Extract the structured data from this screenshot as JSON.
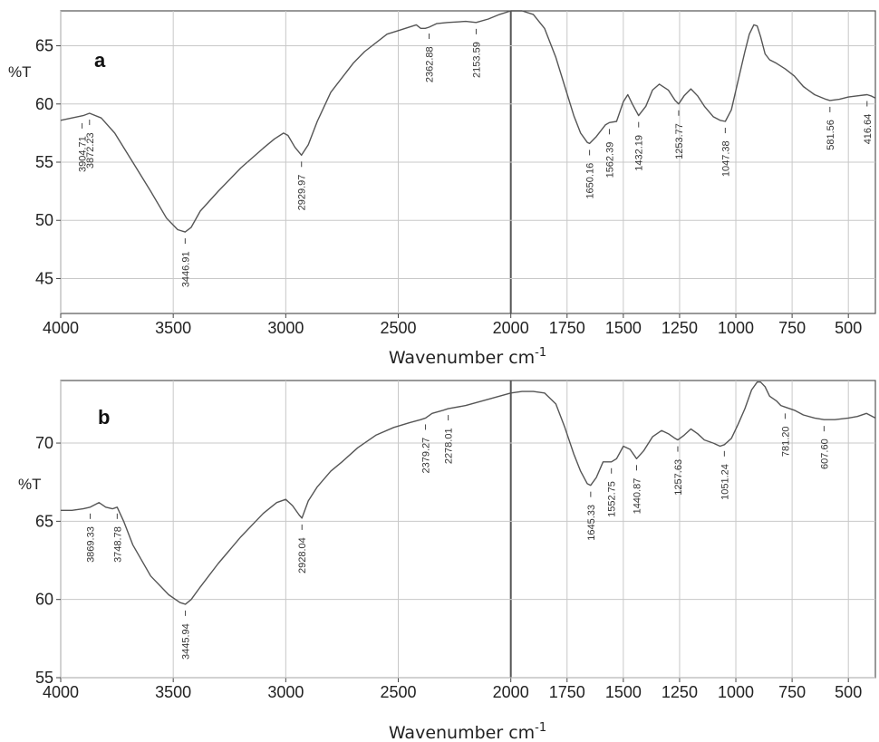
{
  "chart_data": [
    {
      "type": "line",
      "panel_label": "a",
      "ylabel": "%T",
      "xlabel": "Wavenumber cm",
      "xlabel_sup": "-1",
      "xlim": [
        4000,
        380
      ],
      "ylim": [
        42,
        68
      ],
      "x_ticks": [
        4000,
        3500,
        3000,
        2500,
        2000,
        1750,
        1500,
        1250,
        1000,
        750,
        500
      ],
      "y_ticks": [
        45,
        50,
        55,
        60,
        65
      ],
      "grid": true,
      "series": [
        {
          "x": [
            4000,
            3950,
            3900,
            3872,
            3820,
            3760,
            3680,
            3600,
            3530,
            3480,
            3447,
            3420,
            3380,
            3300,
            3200,
            3100,
            3050,
            3010,
            2990,
            2960,
            2930,
            2900,
            2860,
            2800,
            2760,
            2700,
            2650,
            2550,
            2500,
            2420,
            2400,
            2380,
            2363,
            2330,
            2280,
            2200,
            2154,
            2100,
            2050,
            2000,
            1950,
            1900,
            1850,
            1800,
            1760,
            1720,
            1690,
            1660,
            1650,
            1620,
            1580,
            1562,
            1530,
            1500,
            1480,
            1460,
            1432,
            1400,
            1370,
            1340,
            1300,
            1270,
            1254,
            1230,
            1200,
            1170,
            1140,
            1100,
            1070,
            1047,
            1020,
            990,
            960,
            940,
            920,
            905,
            890,
            870,
            850,
            820,
            780,
            740,
            700,
            650,
            600,
            582,
            540,
            500,
            460,
            417,
            400,
            380
          ],
          "values": [
            58.6,
            58.8,
            59.0,
            59.2,
            58.8,
            57.5,
            55.0,
            52.5,
            50.2,
            49.2,
            49.0,
            49.4,
            50.8,
            52.5,
            54.5,
            56.2,
            57.0,
            57.5,
            57.3,
            56.3,
            55.6,
            56.5,
            58.5,
            61.0,
            62.0,
            63.5,
            64.5,
            66.0,
            66.3,
            66.8,
            66.5,
            66.5,
            66.6,
            66.9,
            67.0,
            67.1,
            67.0,
            67.3,
            67.7,
            68.0,
            68.0,
            67.7,
            66.5,
            64.0,
            61.5,
            59.0,
            57.5,
            56.7,
            56.6,
            57.2,
            58.2,
            58.4,
            58.5,
            60.2,
            60.8,
            60.0,
            59.0,
            59.8,
            61.2,
            61.7,
            61.2,
            60.3,
            60.0,
            60.7,
            61.3,
            60.7,
            59.8,
            58.9,
            58.6,
            58.5,
            59.5,
            62.0,
            64.5,
            66.0,
            66.8,
            66.7,
            65.8,
            64.3,
            63.8,
            63.5,
            63.0,
            62.4,
            61.5,
            60.8,
            60.4,
            60.3,
            60.4,
            60.6,
            60.7,
            60.8,
            60.7,
            60.5
          ]
        }
      ],
      "peaks": [
        {
          "label": "3904.71",
          "x": 3905,
          "y": 58.9
        },
        {
          "label": "3872.23",
          "x": 3872,
          "y": 59.2
        },
        {
          "label": "3446.91",
          "x": 3447,
          "y": 49.0
        },
        {
          "label": "2929.97",
          "x": 2930,
          "y": 55.6
        },
        {
          "label": "2362.88",
          "x": 2363,
          "y": 66.6
        },
        {
          "label": "2153.59",
          "x": 2154,
          "y": 67.0
        },
        {
          "label": "1650.16",
          "x": 1650,
          "y": 56.6
        },
        {
          "label": "1562.39",
          "x": 1562,
          "y": 58.4
        },
        {
          "label": "1432.19",
          "x": 1432,
          "y": 59.0
        },
        {
          "label": "1253.77",
          "x": 1254,
          "y": 60.0
        },
        {
          "label": "1047.38",
          "x": 1047,
          "y": 58.5
        },
        {
          "label": "581.56",
          "x": 582,
          "y": 60.3
        },
        {
          "label": "416.64",
          "x": 417,
          "y": 60.8
        }
      ]
    },
    {
      "type": "line",
      "panel_label": "b",
      "ylabel": "%T",
      "xlabel": "Wavenumber cm",
      "xlabel_sup": "-1",
      "xlim": [
        4000,
        380
      ],
      "ylim": [
        55,
        74
      ],
      "x_ticks": [
        4000,
        3500,
        3000,
        2500,
        2000,
        1750,
        1500,
        1250,
        1000,
        750,
        500
      ],
      "y_ticks": [
        55,
        60,
        65,
        70
      ],
      "grid": true,
      "series": [
        {
          "x": [
            4000,
            3950,
            3900,
            3869,
            3830,
            3800,
            3770,
            3749,
            3720,
            3680,
            3600,
            3520,
            3470,
            3446,
            3420,
            3380,
            3300,
            3200,
            3100,
            3040,
            3000,
            2970,
            2940,
            2928,
            2900,
            2860,
            2800,
            2750,
            2680,
            2600,
            2520,
            2450,
            2400,
            2379,
            2350,
            2300,
            2278,
            2200,
            2100,
            2000,
            1950,
            1900,
            1850,
            1800,
            1760,
            1720,
            1690,
            1660,
            1645,
            1620,
            1590,
            1553,
            1530,
            1500,
            1470,
            1441,
            1410,
            1370,
            1330,
            1300,
            1270,
            1258,
            1230,
            1200,
            1170,
            1140,
            1100,
            1070,
            1051,
            1020,
            990,
            960,
            930,
            905,
            890,
            870,
            850,
            820,
            800,
            781,
            740,
            700,
            650,
            608,
            560,
            500,
            460,
            420,
            380
          ],
          "values": [
            65.7,
            65.7,
            65.8,
            65.9,
            66.2,
            65.9,
            65.8,
            65.9,
            65.0,
            63.5,
            61.5,
            60.3,
            59.8,
            59.7,
            60.0,
            60.8,
            62.3,
            64.0,
            65.5,
            66.2,
            66.4,
            66.0,
            65.4,
            65.2,
            66.3,
            67.2,
            68.2,
            68.8,
            69.7,
            70.5,
            71.0,
            71.3,
            71.5,
            71.6,
            71.9,
            72.1,
            72.2,
            72.4,
            72.8,
            73.2,
            73.3,
            73.3,
            73.2,
            72.5,
            71.0,
            69.3,
            68.2,
            67.4,
            67.3,
            67.8,
            68.8,
            68.8,
            69.0,
            69.8,
            69.6,
            69.0,
            69.5,
            70.4,
            70.8,
            70.6,
            70.3,
            70.2,
            70.5,
            70.9,
            70.6,
            70.2,
            70.0,
            69.8,
            69.9,
            70.3,
            71.2,
            72.2,
            73.4,
            73.9,
            73.9,
            73.6,
            73.0,
            72.7,
            72.4,
            72.3,
            72.1,
            71.8,
            71.6,
            71.5,
            71.5,
            71.6,
            71.7,
            71.9,
            71.6
          ]
        }
      ],
      "peaks": [
        {
          "label": "3869.33",
          "x": 3869,
          "y": 65.9
        },
        {
          "label": "3748.78",
          "x": 3749,
          "y": 65.9
        },
        {
          "label": "3445.94",
          "x": 3446,
          "y": 59.7
        },
        {
          "label": "2928.04",
          "x": 2928,
          "y": 65.2
        },
        {
          "label": "2379.27",
          "x": 2379,
          "y": 71.6
        },
        {
          "label": "2278.01",
          "x": 2278,
          "y": 72.2
        },
        {
          "label": "1645.33",
          "x": 1645,
          "y": 67.3
        },
        {
          "label": "1552.75",
          "x": 1553,
          "y": 68.8
        },
        {
          "label": "1440.87",
          "x": 1441,
          "y": 69.0
        },
        {
          "label": "1257.63",
          "x": 1258,
          "y": 70.2
        },
        {
          "label": "1051.24",
          "x": 1051,
          "y": 69.9
        },
        {
          "label": "781.20",
          "x": 781,
          "y": 72.3
        },
        {
          "label": "607.60",
          "x": 608,
          "y": 71.5
        }
      ]
    }
  ]
}
